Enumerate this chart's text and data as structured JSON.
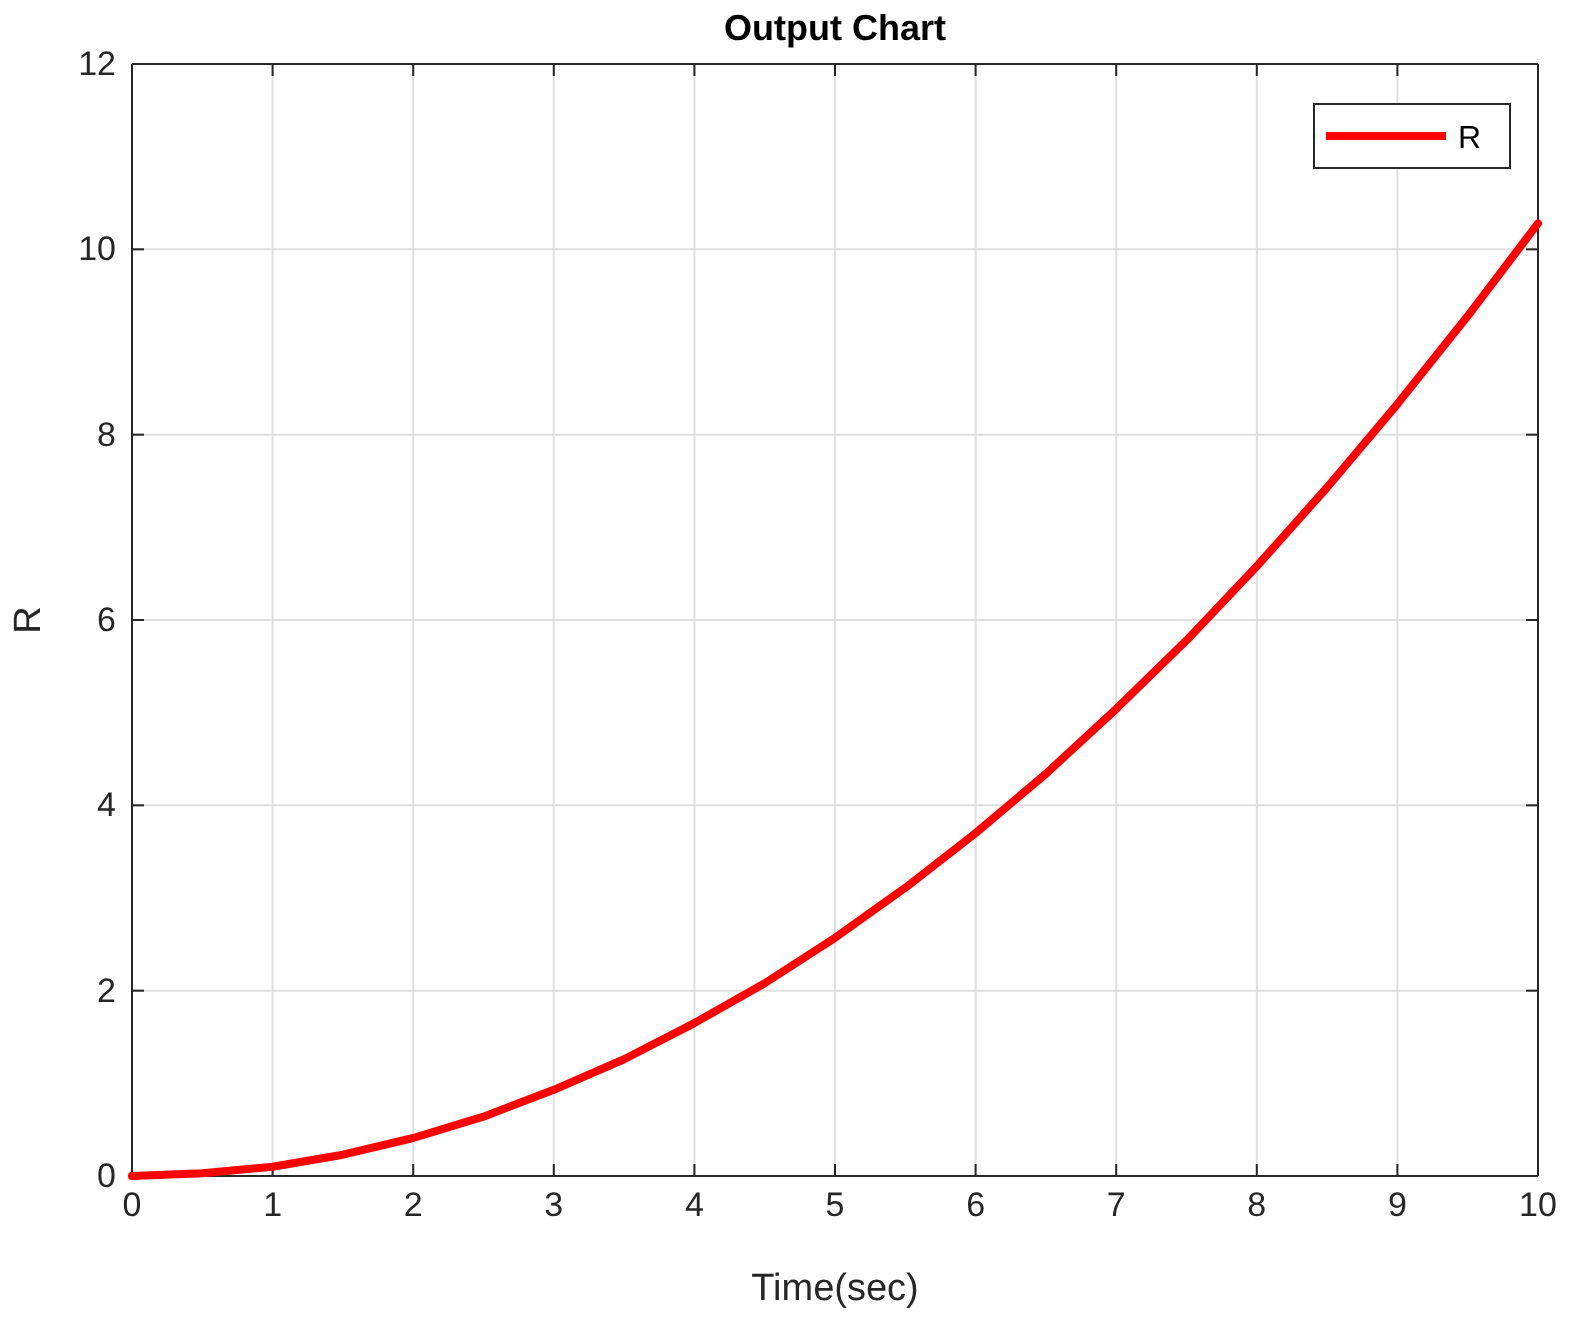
{
  "chart_data": {
    "type": "line",
    "title": "Output Chart",
    "xlabel": "Time(sec)",
    "ylabel": "R",
    "xlim": [
      0,
      10
    ],
    "xticks": [
      0,
      1,
      2,
      3,
      4,
      5,
      6,
      7,
      8,
      9,
      10
    ],
    "ylim": [
      0,
      12
    ],
    "yticks": [
      0,
      2,
      4,
      6,
      8,
      10,
      12
    ],
    "grid": true,
    "legend": "top right",
    "line_style": "solid",
    "series": [
      {
        "name": "R",
        "color": "#ff0000",
        "x": [
          0,
          0.5,
          1,
          1.5,
          2,
          2.5,
          3,
          3.5,
          4,
          4.5,
          5,
          5.5,
          6,
          6.5,
          7,
          7.5,
          8,
          8.5,
          9,
          9.5,
          10
        ],
        "values": [
          0,
          0.03,
          0.1,
          0.23,
          0.41,
          0.64,
          0.93,
          1.26,
          1.65,
          2.08,
          2.57,
          3.11,
          3.7,
          4.34,
          5.04,
          5.78,
          6.58,
          7.43,
          8.33,
          9.28,
          10.28
        ]
      }
    ]
  }
}
